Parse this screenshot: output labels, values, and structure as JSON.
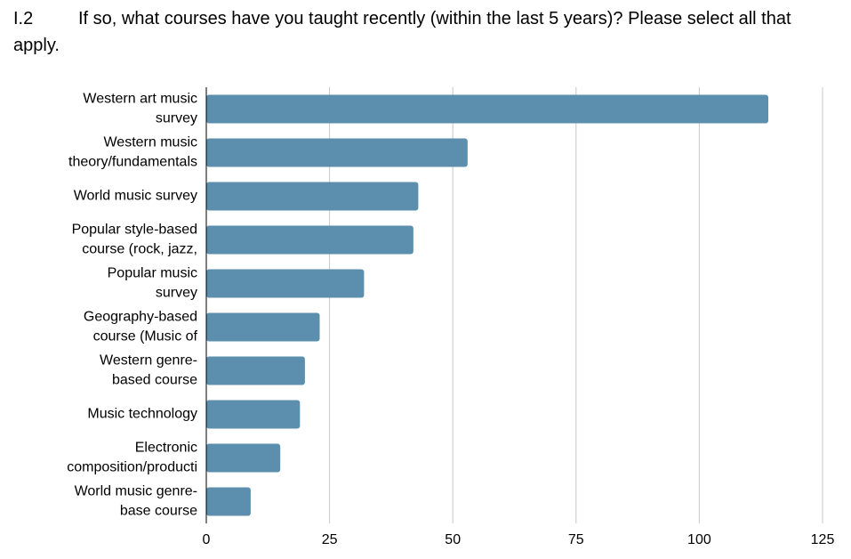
{
  "chart_data": {
    "type": "hbar",
    "question_number": "I.2",
    "title": "If so, what courses have you taught recently (within the last 5 years)? Please select all that apply.",
    "categories": [
      [
        "Western art music",
        "survey"
      ],
      [
        "Western music",
        "theory/fundamentals"
      ],
      [
        "World music survey"
      ],
      [
        "Popular style-based",
        "course (rock, jazz,"
      ],
      [
        "Popular music",
        "survey"
      ],
      [
        "Geography-based",
        "course (Music of"
      ],
      [
        "Western genre-",
        "based course"
      ],
      [
        "Music technology"
      ],
      [
        "Electronic",
        "composition/producti"
      ],
      [
        "World music genre-",
        "base course"
      ]
    ],
    "values": [
      114,
      53,
      43,
      42,
      32,
      23,
      20,
      19,
      15,
      9
    ],
    "color": "#5b8fad",
    "xlim": [
      0,
      125
    ],
    "xticks": [
      0,
      25,
      50,
      75,
      100,
      125
    ],
    "grid": true
  }
}
